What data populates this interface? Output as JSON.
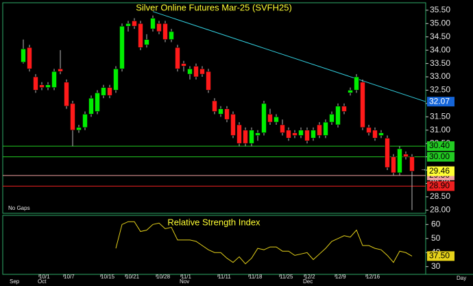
{
  "chart_data": {
    "type": "candlestick",
    "title": "Silver  Online  Futures  Mar-25  (SVFH25)",
    "note": "No Gaps",
    "x_unit": "Day",
    "up_color": "#00ee00",
    "down_color": "#ff1a1a",
    "categories": [
      null,
      null,
      null,
      "10/1",
      null,
      null,
      null,
      "10/7",
      null,
      null,
      null,
      null,
      null,
      "10/15",
      null,
      null,
      null,
      "10/21",
      null,
      null,
      null,
      null,
      "10/28",
      null,
      null,
      null,
      "11/1",
      null,
      null,
      null,
      null,
      null,
      "11/11",
      null,
      null,
      null,
      null,
      "11/18",
      null,
      null,
      null,
      null,
      "11/25",
      null,
      null,
      null,
      "12/2",
      null,
      null,
      null,
      null,
      "12/9",
      null,
      null,
      null,
      null,
      "12/16",
      null,
      null,
      null,
      null,
      null,
      null,
      null
    ],
    "months": [
      "Sep",
      null,
      null,
      "Oct",
      null,
      null,
      null,
      null,
      null,
      null,
      null,
      null,
      null,
      null,
      null,
      null,
      null,
      null,
      null,
      null,
      null,
      null,
      null,
      null,
      null,
      null,
      "Nov",
      null,
      null,
      null,
      null,
      null,
      null,
      null,
      null,
      null,
      null,
      null,
      null,
      null,
      null,
      null,
      null,
      null,
      null,
      null,
      "Dec",
      null,
      null,
      null,
      null,
      null,
      null,
      null,
      null,
      null,
      null,
      null,
      null,
      null,
      null,
      null,
      null,
      null
    ],
    "open": [
      33.55,
      34.1,
      33.0,
      32.7,
      32.6,
      32.6,
      33.3,
      32.8,
      32.0,
      31.0,
      31.1,
      31.6,
      31.7,
      32.3,
      32.6,
      32.5,
      33.3,
      34.9,
      35.1,
      35.0,
      34.2,
      34.8,
      35.0,
      35.0,
      34.4,
      34.1,
      33.5,
      33.1,
      33.4,
      33.3,
      33.2,
      32.1,
      31.6,
      31.8,
      31.6,
      31.2,
      31.0,
      30.5,
      30.8,
      30.9,
      31.6,
      31.3,
      31.2,
      31.0,
      30.9,
      30.8,
      31.0,
      30.7,
      31.2,
      30.8,
      31.3,
      31.2,
      31.9,
      32.4,
      32.5,
      32.8,
      31.1,
      31.0,
      30.8,
      30.7,
      30.0,
      29.4,
      30.1,
      30.0
    ],
    "high": [
      34.4,
      34.2,
      33.1,
      32.8,
      32.8,
      33.3,
      34.0,
      32.9,
      32.1,
      31.2,
      31.7,
      32.3,
      32.5,
      32.7,
      32.7,
      33.4,
      35.0,
      35.1,
      35.2,
      35.1,
      34.6,
      35.3,
      35.1,
      35.1,
      34.8,
      34.2,
      33.6,
      33.4,
      33.5,
      33.4,
      33.3,
      32.2,
      31.9,
      31.9,
      31.7,
      31.3,
      31.1,
      31.1,
      31.0,
      32.1,
      31.8,
      31.6,
      31.4,
      31.1,
      31.0,
      31.1,
      31.1,
      31.1,
      31.3,
      31.4,
      31.7,
      32.0,
      32.0,
      32.6,
      33.1,
      32.9,
      31.2,
      31.1,
      31.0,
      30.8,
      30.1,
      30.4,
      30.2,
      30.1
    ],
    "low": [
      33.5,
      33.2,
      32.4,
      32.5,
      32.5,
      32.5,
      33.1,
      31.8,
      30.4,
      30.9,
      31.0,
      31.5,
      31.6,
      32.2,
      32.2,
      32.4,
      33.2,
      34.7,
      34.8,
      34.0,
      34.1,
      34.7,
      34.6,
      34.3,
      34.3,
      33.2,
      33.2,
      32.9,
      32.9,
      33.0,
      32.4,
      31.6,
      31.5,
      31.3,
      30.7,
      30.4,
      30.4,
      30.4,
      30.6,
      30.8,
      31.2,
      31.2,
      30.8,
      30.6,
      30.7,
      30.7,
      30.5,
      30.6,
      30.7,
      30.7,
      31.2,
      31.1,
      31.6,
      32.3,
      32.4,
      31.0,
      30.8,
      30.6,
      30.7,
      29.5,
      29.3,
      29.3,
      29.9,
      28.0
    ],
    "close": [
      34.05,
      33.3,
      32.5,
      32.6,
      32.7,
      33.2,
      33.2,
      31.9,
      31.0,
      31.1,
      31.6,
      32.2,
      32.4,
      32.6,
      32.3,
      33.3,
      34.9,
      35.0,
      34.9,
      34.1,
      34.4,
      35.2,
      34.7,
      34.4,
      34.7,
      33.3,
      33.4,
      33.3,
      33.0,
      33.1,
      32.5,
      31.7,
      31.8,
      31.4,
      30.8,
      30.5,
      30.5,
      31.0,
      30.9,
      32.0,
      31.3,
      31.5,
      30.9,
      30.7,
      30.8,
      31.0,
      30.6,
      31.0,
      30.8,
      31.3,
      31.6,
      31.9,
      31.7,
      32.5,
      33.0,
      31.1,
      30.9,
      30.7,
      30.9,
      29.6,
      29.4,
      30.3,
      30.0,
      29.46
    ],
    "ylim": [
      27.88,
      35.78
    ],
    "yticks": [
      {
        "value": 28.0,
        "label": "28.00"
      },
      {
        "value": 28.5,
        "label": "28.50"
      },
      {
        "value": 29.0,
        "label": "29.00"
      },
      {
        "value": 29.5,
        "label": "29.50"
      },
      {
        "value": 30.0,
        "label": "30.00"
      },
      {
        "value": 30.5,
        "label": "30.50"
      },
      {
        "value": 31.0,
        "label": "31.00"
      },
      {
        "value": 31.5,
        "label": "31.50"
      },
      {
        "value": 32.0,
        "label": "32.00"
      },
      {
        "value": 32.5,
        "label": "32.50"
      },
      {
        "value": 33.0,
        "label": "33.00"
      },
      {
        "value": 33.5,
        "label": "33.50"
      },
      {
        "value": 34.0,
        "label": "34.00"
      },
      {
        "value": 34.5,
        "label": "34.50"
      },
      {
        "value": 35.0,
        "label": "35.00"
      },
      {
        "value": 35.5,
        "label": "35.50"
      }
    ],
    "levels": [
      {
        "value": 30.4,
        "label": "30.40",
        "color": "#22cc22",
        "text_color": "#000000"
      },
      {
        "value": 30.0,
        "label": "30.00",
        "color": "#22cc22",
        "text_color": "#000000"
      },
      {
        "value": 29.3,
        "label": "29.30",
        "color": "#f0a0a0",
        "text_color": "#000000"
      },
      {
        "value": 28.9,
        "label": "28.90",
        "color": "#ee2020",
        "text_color": "#000000"
      }
    ],
    "last": {
      "value": 29.46,
      "label": "29.46",
      "color": "#ffff33"
    },
    "trendline": {
      "start": [
        21,
        35.45
      ],
      "end": {
        "value": 32.07,
        "label": "32.07"
      },
      "color": "#33d0e0"
    },
    "rsi": {
      "title": "Relative  Strength  Index",
      "color": "#e6d21a",
      "values": [
        null,
        null,
        null,
        null,
        null,
        null,
        null,
        null,
        null,
        null,
        null,
        null,
        null,
        null,
        null,
        43,
        60,
        62,
        62,
        55,
        56,
        60,
        61,
        57,
        58,
        49,
        49,
        49,
        48,
        45,
        42,
        40,
        40,
        36,
        33,
        37,
        32,
        36,
        43,
        42,
        44,
        44,
        41,
        41,
        38,
        39,
        40,
        35,
        39,
        43,
        48,
        50,
        52,
        51,
        56,
        45,
        45,
        43,
        42,
        38,
        33,
        41,
        40,
        37.5
      ],
      "last_label": "37.50",
      "ylim": [
        24.5,
        66.5
      ],
      "yticks": [
        30,
        40,
        50,
        60
      ]
    }
  }
}
